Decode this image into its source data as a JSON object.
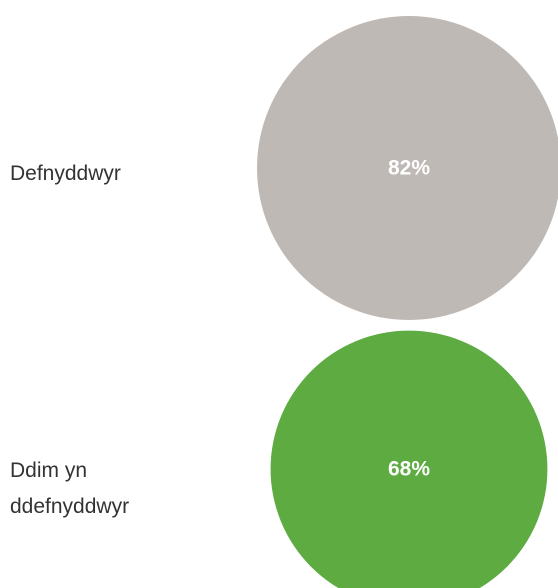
{
  "chart_data": {
    "type": "bubble",
    "categories": [
      "Defnyddwyr",
      "Ddim yn ddefnyddwyr"
    ],
    "values": [
      82,
      68
    ],
    "value_labels": [
      "82%",
      "68%"
    ],
    "unit": "%",
    "colors": [
      "#bfb9b6",
      "#5dab41"
    ],
    "label_color": "#ffffff",
    "title": "",
    "xlabel": "",
    "ylabel": ""
  }
}
